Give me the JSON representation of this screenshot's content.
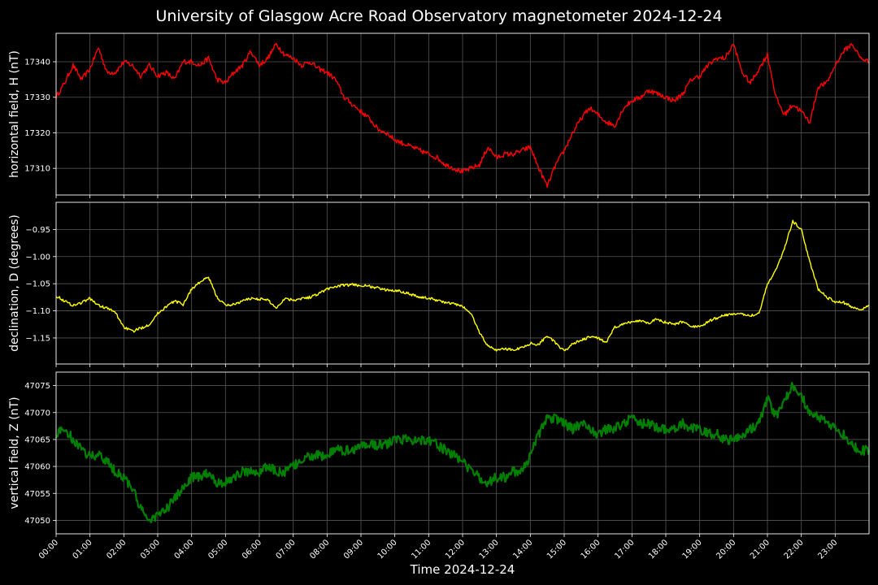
{
  "title": "University of Glasgow Acre Road Observatory magnetometer 2024-12-24",
  "chart_data": [
    {
      "type": "line",
      "ylabel": "horizontal field, H (nT)",
      "color": "#ff0000",
      "yticks": [
        17310,
        17320,
        17330,
        17340
      ],
      "ylim": [
        17302.5,
        17348
      ],
      "grid": true,
      "series": [
        {
          "x": [
            0,
            0.25,
            0.5,
            0.75,
            1,
            1.25,
            1.5,
            1.75,
            2,
            2.25,
            2.5,
            2.75,
            3,
            3.25,
            3.5,
            3.75,
            4,
            4.25,
            4.5,
            4.75,
            5,
            5.25,
            5.5,
            5.75,
            6,
            6.25,
            6.5,
            6.75,
            7,
            7.25,
            7.5,
            7.75,
            8,
            8.25,
            8.5,
            8.75,
            9,
            9.25,
            9.5,
            9.75,
            10,
            10.25,
            10.5,
            10.75,
            11,
            11.25,
            11.5,
            11.75,
            12,
            12.25,
            12.5,
            12.75,
            13,
            13.25,
            13.5,
            13.75,
            14,
            14.25,
            14.5,
            14.75,
            15,
            15.25,
            15.5,
            15.75,
            16,
            16.25,
            16.5,
            16.75,
            17,
            17.25,
            17.5,
            17.75,
            18,
            18.25,
            18.5,
            18.75,
            19,
            19.25,
            19.5,
            19.75,
            20,
            20.25,
            20.5,
            20.75,
            21,
            21.25,
            21.5,
            21.75,
            22,
            22.25,
            22.5,
            22.75,
            23,
            23.25,
            23.5,
            23.75,
            24
          ],
          "y": [
            17330,
            17334,
            17339,
            17335,
            17338,
            17344,
            17337,
            17337,
            17340,
            17339,
            17336,
            17339,
            17336,
            17337,
            17335,
            17340,
            17340,
            17339,
            17341,
            17335,
            17334,
            17337,
            17339,
            17343,
            17339,
            17341,
            17345,
            17342,
            17341,
            17339,
            17340,
            17338,
            17337,
            17335,
            17330,
            17328,
            17326,
            17324,
            17321,
            17320,
            17318,
            17317,
            17316,
            17315,
            17314,
            17313,
            17311,
            17310,
            17309,
            17310,
            17311,
            17316,
            17313,
            17314,
            17314,
            17315,
            17316,
            17310,
            17305,
            17311,
            17315,
            17320,
            17324,
            17327,
            17325,
            17323,
            17322,
            17327,
            17329,
            17330,
            17332,
            17331,
            17330,
            17329,
            17331,
            17335,
            17336,
            17339,
            17341,
            17341,
            17345,
            17337,
            17334,
            17338,
            17342,
            17330,
            17325,
            17328,
            17326,
            17323,
            17333,
            17334,
            17339,
            17343,
            17345,
            17341,
            17340
          ],
          "name": ""
        }
      ]
    },
    {
      "type": "line",
      "ylabel": "declination, D (degrees)",
      "color": "#ffff00",
      "yticks": [
        -1.15,
        -1.1,
        -1.05,
        -1.0,
        -0.95
      ],
      "ytick_labels": [
        "−1.15",
        "−1.10",
        "−1.05",
        "−1.00",
        "−0.95"
      ],
      "ylim": [
        -1.198,
        -0.9
      ],
      "grid": true,
      "series": [
        {
          "x": [
            0,
            0.25,
            0.5,
            0.75,
            1,
            1.25,
            1.5,
            1.75,
            2,
            2.25,
            2.5,
            2.75,
            3,
            3.25,
            3.5,
            3.75,
            4,
            4.25,
            4.5,
            4.75,
            5,
            5.25,
            5.5,
            5.75,
            6,
            6.25,
            6.5,
            6.75,
            7,
            7.25,
            7.5,
            7.75,
            8,
            8.25,
            8.5,
            8.75,
            9,
            9.25,
            9.5,
            9.75,
            10,
            10.25,
            10.5,
            10.75,
            11,
            11.25,
            11.5,
            11.75,
            12,
            12.25,
            12.5,
            12.75,
            13,
            13.25,
            13.5,
            13.75,
            14,
            14.25,
            14.5,
            14.75,
            15,
            15.25,
            15.5,
            15.75,
            16,
            16.25,
            16.5,
            16.75,
            17,
            17.25,
            17.5,
            17.75,
            18,
            18.25,
            18.5,
            18.75,
            19,
            19.25,
            19.5,
            19.75,
            20,
            20.25,
            20.5,
            20.75,
            21,
            21.25,
            21.5,
            21.75,
            22,
            22.25,
            22.5,
            22.75,
            23,
            23.25,
            23.5,
            23.75,
            24
          ],
          "y": [
            -1.072,
            -1.082,
            -1.09,
            -1.085,
            -1.077,
            -1.09,
            -1.095,
            -1.103,
            -1.13,
            -1.138,
            -1.132,
            -1.125,
            -1.105,
            -1.092,
            -1.082,
            -1.088,
            -1.06,
            -1.047,
            -1.038,
            -1.075,
            -1.09,
            -1.088,
            -1.082,
            -1.077,
            -1.078,
            -1.08,
            -1.095,
            -1.077,
            -1.08,
            -1.077,
            -1.075,
            -1.068,
            -1.06,
            -1.055,
            -1.053,
            -1.052,
            -1.053,
            -1.055,
            -1.058,
            -1.062,
            -1.062,
            -1.065,
            -1.07,
            -1.075,
            -1.077,
            -1.08,
            -1.085,
            -1.087,
            -1.092,
            -1.105,
            -1.14,
            -1.165,
            -1.172,
            -1.17,
            -1.172,
            -1.168,
            -1.16,
            -1.162,
            -1.145,
            -1.16,
            -1.175,
            -1.16,
            -1.155,
            -1.148,
            -1.15,
            -1.158,
            -1.13,
            -1.125,
            -1.12,
            -1.118,
            -1.122,
            -1.115,
            -1.122,
            -1.125,
            -1.12,
            -1.128,
            -1.13,
            -1.12,
            -1.113,
            -1.108,
            -1.105,
            -1.107,
            -1.108,
            -1.105,
            -1.05,
            -1.025,
            -0.985,
            -0.935,
            -0.95,
            -1.01,
            -1.06,
            -1.075,
            -1.083,
            -1.085,
            -1.093,
            -1.098,
            -1.09
          ],
          "name": ""
        }
      ]
    },
    {
      "type": "line",
      "ylabel": "vertical field, Z (nT)",
      "color": "#008000",
      "yticks": [
        47050,
        47055,
        47060,
        47065,
        47070,
        47075
      ],
      "ylim": [
        47047.5,
        47077.5
      ],
      "xlabel": "Time 2024-12-24",
      "xticks": [
        "00:00",
        "01:00",
        "02:00",
        "03:00",
        "04:00",
        "05:00",
        "06:00",
        "07:00",
        "08:00",
        "09:00",
        "10:00",
        "11:00",
        "12:00",
        "13:00",
        "14:00",
        "15:00",
        "16:00",
        "17:00",
        "18:00",
        "19:00",
        "20:00",
        "21:00",
        "22:00",
        "23:00"
      ],
      "grid": true,
      "series": [
        {
          "x": [
            0,
            0.25,
            0.5,
            0.75,
            1,
            1.25,
            1.5,
            1.75,
            2,
            2.25,
            2.5,
            2.75,
            3,
            3.25,
            3.5,
            3.75,
            4,
            4.25,
            4.5,
            4.75,
            5,
            5.25,
            5.5,
            5.75,
            6,
            6.25,
            6.5,
            6.75,
            7,
            7.25,
            7.5,
            7.75,
            8,
            8.25,
            8.5,
            8.75,
            9,
            9.25,
            9.5,
            9.75,
            10,
            10.25,
            10.5,
            10.75,
            11,
            11.25,
            11.5,
            11.75,
            12,
            12.25,
            12.5,
            12.75,
            13,
            13.25,
            13.5,
            13.75,
            14,
            14.25,
            14.5,
            14.75,
            15,
            15.25,
            15.5,
            15.75,
            16,
            16.25,
            16.5,
            16.75,
            17,
            17.25,
            17.5,
            17.75,
            18,
            18.25,
            18.5,
            18.75,
            19,
            19.25,
            19.5,
            19.75,
            20,
            20.25,
            20.5,
            20.75,
            21,
            21.25,
            21.5,
            21.75,
            22,
            22.25,
            22.5,
            22.75,
            23,
            23.25,
            23.5,
            23.75,
            24
          ],
          "y": [
            47066,
            47067,
            47065,
            47063,
            47062,
            47062,
            47061,
            47059,
            47058,
            47056,
            47052,
            47050,
            47051,
            47052,
            47054,
            47056,
            47058,
            47058,
            47059,
            47057,
            47057,
            47058,
            47059,
            47059,
            47059,
            47060,
            47059,
            47059,
            47060,
            47061,
            47062,
            47062,
            47062,
            47063,
            47063,
            47063,
            47064,
            47064,
            47064,
            47064,
            47065,
            47065,
            47065,
            47065,
            47065,
            47064,
            47063,
            47062,
            47061,
            47059,
            47058,
            47057,
            47058,
            47058,
            47059,
            47059,
            47062,
            47066,
            47069,
            47069,
            47068,
            47067,
            47068,
            47067,
            47066,
            47067,
            47067,
            47068,
            47069,
            47068,
            47068,
            47067,
            47067,
            47067,
            47068,
            47067,
            47067,
            47066,
            47066,
            47065,
            47065,
            47066,
            47067,
            47068,
            47073,
            47069,
            47072,
            47075,
            47073,
            47070,
            47069,
            47068,
            47067,
            47066,
            47064,
            47063,
            47063
          ],
          "name": ""
        }
      ]
    }
  ]
}
